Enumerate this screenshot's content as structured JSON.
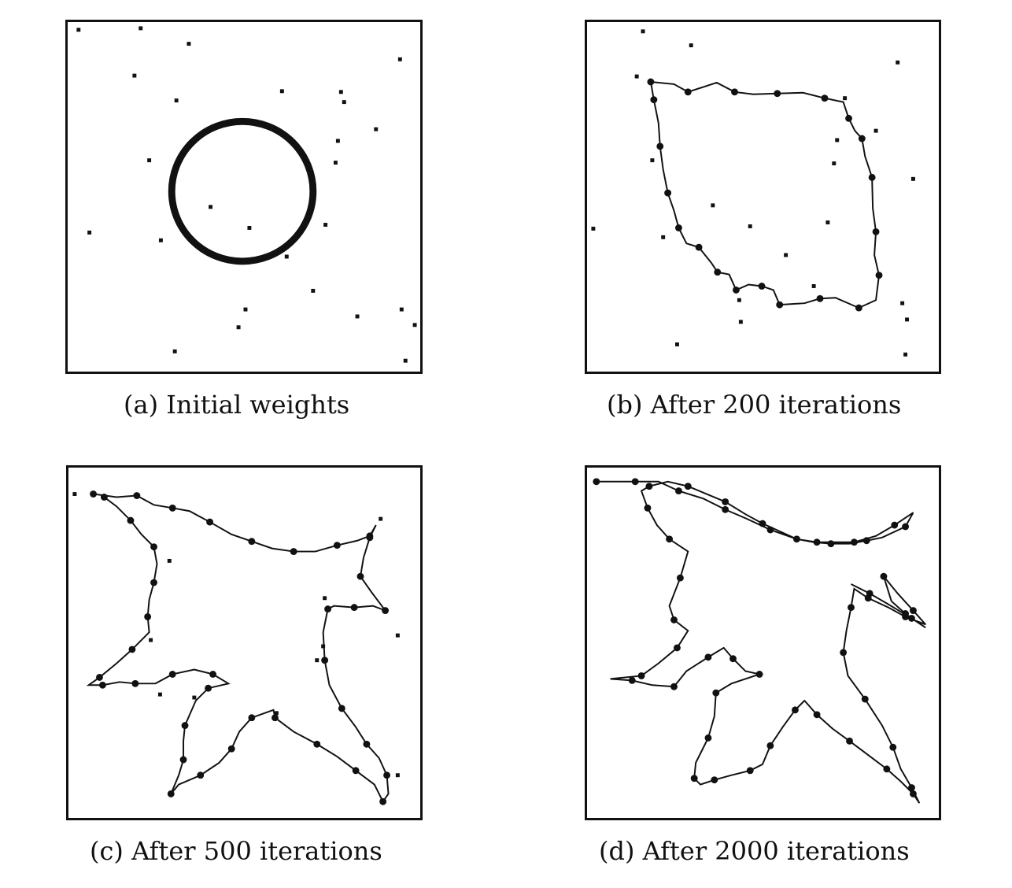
{
  "panels": [
    {
      "id": "a",
      "caption": "(a) Initial weights"
    },
    {
      "id": "b",
      "caption": "(b) After 200 iterations"
    },
    {
      "id": "c",
      "caption": "(c) After 500 iterations"
    },
    {
      "id": "d",
      "caption": "(d) After 2000 iterations"
    }
  ],
  "colors": {
    "ink": "#111111",
    "background": "#ffffff"
  }
}
